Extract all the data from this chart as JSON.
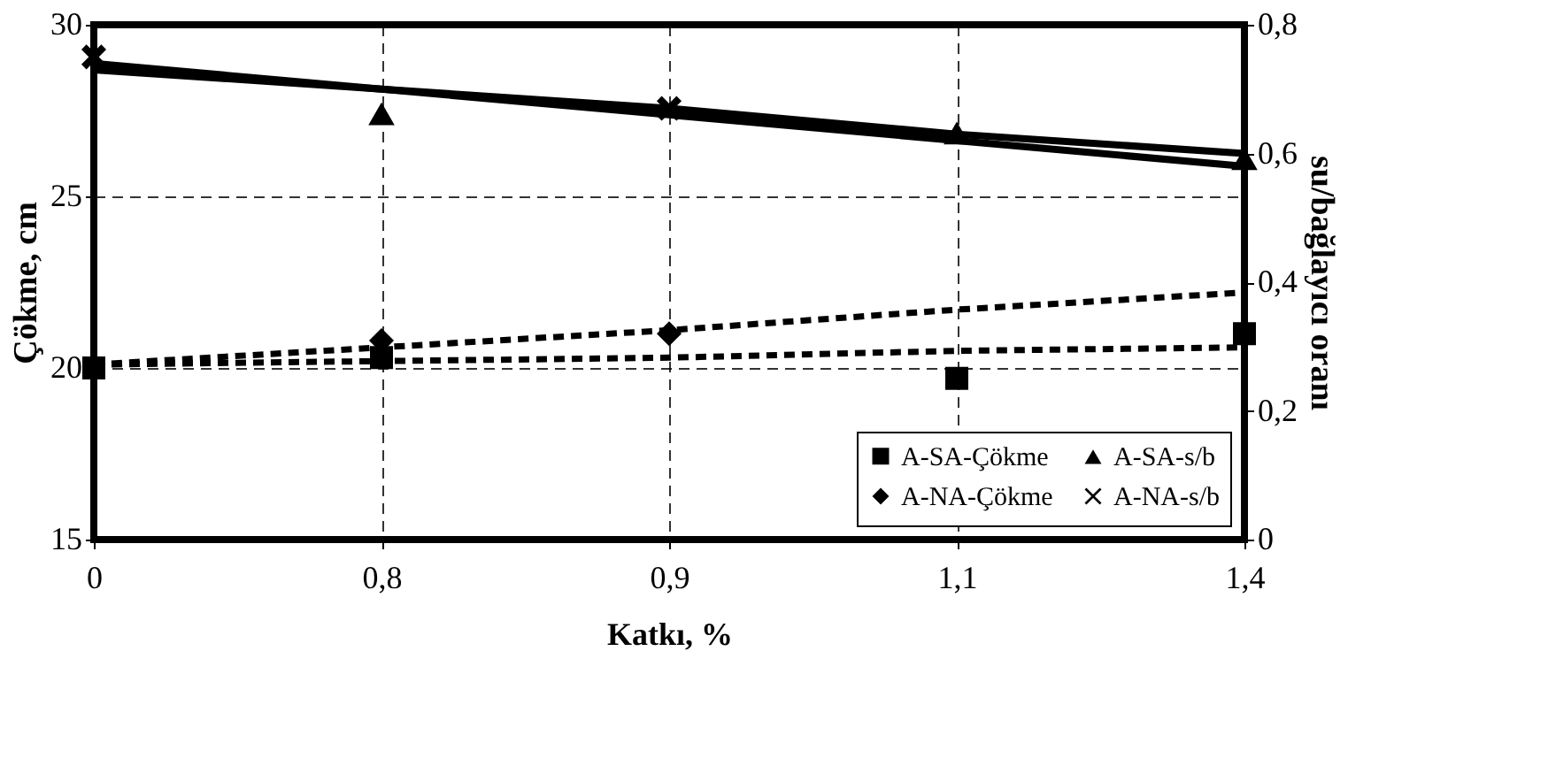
{
  "chart_data": {
    "type": "scatter",
    "xlabel": "Katkı, %",
    "ylabel": "Çökme, cm",
    "y2label": "su/bağlayıcı oranı",
    "categories": [
      "0",
      "0,8",
      "0,9",
      "1,1",
      "1,4"
    ],
    "ylim": [
      15,
      30
    ],
    "yticks": [
      15,
      20,
      25,
      30
    ],
    "y2lim": [
      0,
      0.8
    ],
    "y2ticks": [
      0,
      {
        "value": 0.2,
        "label": "0,2"
      },
      {
        "value": 0.4,
        "label": "0,4"
      },
      {
        "value": 0.6,
        "label": "0,6"
      },
      {
        "value": 0.8,
        "label": "0,8"
      }
    ],
    "grid": true,
    "legend": "bottom right",
    "series": [
      {
        "name": "A-SA-Çökme",
        "marker": "square",
        "color": "#000000",
        "values": [
          20,
          20.3,
          null,
          19.7,
          21
        ]
      },
      {
        "name": "A-NA-Çökme",
        "marker": "diamond",
        "color": "#000000",
        "values": [
          null,
          20.8,
          21,
          null,
          null
        ]
      },
      {
        "name": "A-SA-s/b",
        "marker": "triangle",
        "color": "#000000",
        "axis": "y2",
        "values": [
          null,
          0.66,
          null,
          0.63,
          0.59
        ]
      },
      {
        "name": "A-NA-s/b",
        "marker": "cross",
        "color": "#000000",
        "axis": "y2",
        "values": [
          0.75,
          null,
          0.67,
          null,
          null
        ]
      },
      {
        "type": "line",
        "line_style": "dashed",
        "color": "#000000",
        "values": [
          20.1,
          20.2,
          20.3,
          20.5,
          20.6
        ]
      },
      {
        "type": "line",
        "line_style": "dashed",
        "color": "#000000",
        "values": [
          20.1,
          20.6,
          21.1,
          21.7,
          22.2
        ]
      },
      {
        "type": "line",
        "line_style": "solid",
        "color": "#000000",
        "axis": "y2",
        "values": [
          0.73,
          0.7,
          0.67,
          0.63,
          0.6
        ]
      },
      {
        "type": "line",
        "line_style": "solid",
        "color": "#000000",
        "axis": "y2",
        "values": [
          0.74,
          0.7,
          0.66,
          0.62,
          0.58
        ]
      }
    ]
  }
}
